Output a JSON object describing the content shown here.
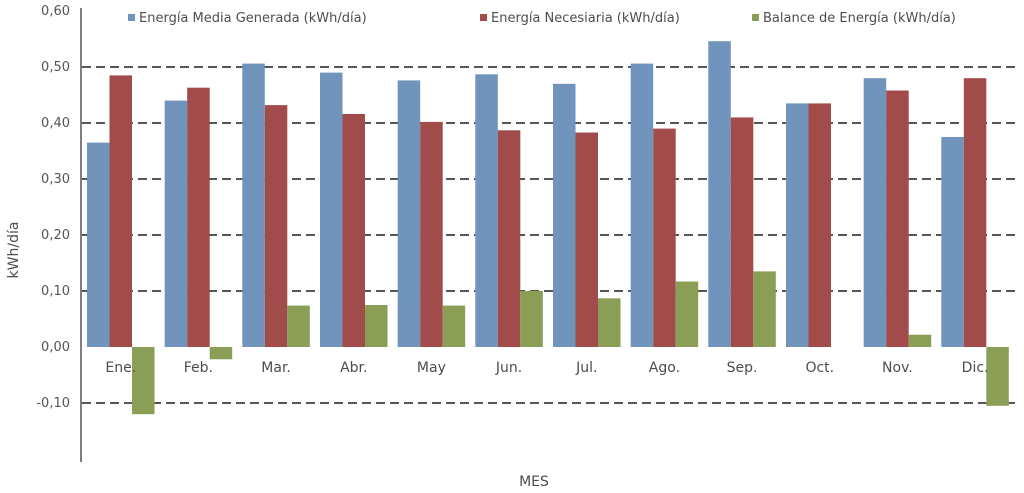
{
  "chart_data": {
    "type": "bar",
    "xlabel": "MES",
    "ylabel": "kWh/día",
    "ylim": [
      -0.2,
      0.6
    ],
    "yticks": [
      -0.1,
      0.0,
      0.1,
      0.2,
      0.3,
      0.4,
      0.5,
      0.6
    ],
    "ytick_labels": [
      "-0,10",
      "0,00",
      "0,10",
      "0,20",
      "0,30",
      "0,40",
      "0,50",
      "0,60"
    ],
    "grid": "dashed horizontal",
    "legend_position": "top",
    "categories": [
      "Ene.",
      "Feb.",
      "Mar.",
      "Abr.",
      "May",
      "Jun.",
      "Jul.",
      "Ago.",
      "Sep.",
      "Oct.",
      "Nov.",
      "Dic."
    ],
    "series": [
      {
        "name": "Energía Media Generada (kWh/día)",
        "color": "#7094bb",
        "values": [
          0.365,
          0.44,
          0.506,
          0.49,
          0.476,
          0.487,
          0.47,
          0.506,
          0.546,
          0.435,
          0.48,
          0.375
        ]
      },
      {
        "name": "Energía Necesiaria (kWh/día)",
        "color": "#a24b4b",
        "values": [
          0.485,
          0.463,
          0.432,
          0.416,
          0.402,
          0.387,
          0.383,
          0.39,
          0.41,
          0.435,
          0.458,
          0.48
        ]
      },
      {
        "name": "Balance de Energía (kWh/día)",
        "color": "#8a9e55",
        "values": [
          -0.12,
          -0.022,
          0.074,
          0.075,
          0.074,
          0.1,
          0.087,
          0.117,
          0.135,
          0.0,
          0.022,
          -0.105
        ]
      }
    ]
  }
}
